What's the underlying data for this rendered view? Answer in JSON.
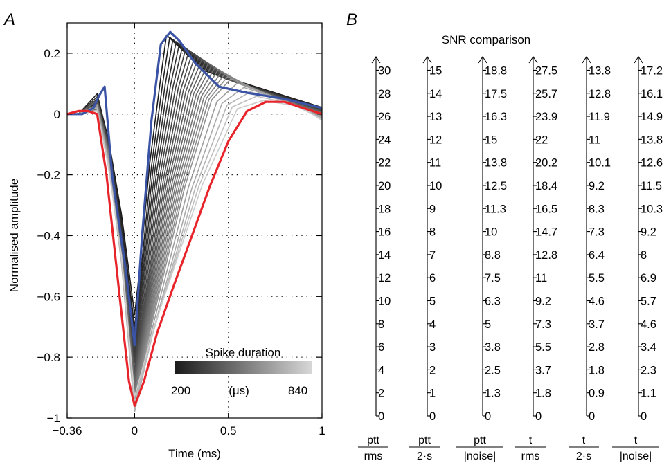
{
  "panel_labels": {
    "a": "A",
    "b": "B"
  },
  "chart_data": [
    {
      "type": "line",
      "panel": "A",
      "xlabel": "Time (ms)",
      "ylabel": "Normalised amplitude",
      "xlim": [
        -0.36,
        1
      ],
      "ylim": [
        -1,
        0.3
      ],
      "xticks": [
        -0.36,
        0,
        0.5,
        1
      ],
      "xtick_labels": [
        "−0.36",
        "0",
        "0.5",
        "1"
      ],
      "yticks": [
        0.2,
        0,
        -0.2,
        -0.4,
        -0.6,
        -0.8,
        -1
      ],
      "ytick_labels": [
        "0.2",
        "0",
        "−0.2",
        "−0.4",
        "−0.6",
        "−0.8",
        "−1"
      ],
      "grid": "dotted",
      "colorbar": {
        "title": "Spike duration",
        "unit": "(μs)",
        "min_label": "200",
        "max_label": "840",
        "colors": [
          "#1a1a1a",
          "#d8d8d8"
        ]
      },
      "series": [
        {
          "color": "#3a53a4",
          "highlight": true,
          "trough": -0.76,
          "dur": 200
        },
        {
          "color": "#e8242b",
          "highlight": true,
          "trough": -0.96,
          "dur": 840
        }
      ],
      "gray_traces": [
        {
          "trough": -0.66,
          "dur": 200
        },
        {
          "trough": -0.7,
          "dur": 220
        },
        {
          "trough": -0.72,
          "dur": 240
        },
        {
          "trough": -0.74,
          "dur": 260
        },
        {
          "trough": -0.76,
          "dur": 280
        },
        {
          "trough": -0.78,
          "dur": 300
        },
        {
          "trough": -0.8,
          "dur": 320
        },
        {
          "trough": -0.82,
          "dur": 340
        },
        {
          "trough": -0.84,
          "dur": 360
        },
        {
          "trough": -0.85,
          "dur": 380
        },
        {
          "trough": -0.86,
          "dur": 400
        },
        {
          "trough": -0.87,
          "dur": 420
        },
        {
          "trough": -0.88,
          "dur": 440
        },
        {
          "trough": -0.89,
          "dur": 460
        },
        {
          "trough": -0.9,
          "dur": 480
        },
        {
          "trough": -0.91,
          "dur": 500
        },
        {
          "trough": -0.92,
          "dur": 520
        },
        {
          "trough": -0.93,
          "dur": 540
        },
        {
          "trough": -0.94,
          "dur": 560
        },
        {
          "trough": -0.95,
          "dur": 580
        },
        {
          "trough": -0.96,
          "dur": 600
        },
        {
          "trough": -0.97,
          "dur": 640
        },
        {
          "trough": -0.98,
          "dur": 680
        },
        {
          "trough": -0.97,
          "dur": 720
        },
        {
          "trough": -0.95,
          "dur": 760
        },
        {
          "trough": -0.93,
          "dur": 800
        }
      ]
    },
    {
      "type": "table",
      "panel": "B",
      "title": "SNR comparison",
      "axes": [
        {
          "num": "ptt",
          "den": "rms",
          "ticks": [
            "30",
            "28",
            "26",
            "24",
            "22",
            "20",
            "18",
            "16",
            "14",
            "12",
            "10",
            "8",
            "6",
            "4",
            "2",
            "0"
          ]
        },
        {
          "num": "ptt",
          "den": "2·s",
          "ticks": [
            "15",
            "14",
            "13",
            "12",
            "11",
            "10",
            "9",
            "8",
            "7",
            "6",
            "5",
            "4",
            "3",
            "2",
            "1",
            "0"
          ]
        },
        {
          "num": "ptt",
          "den": "|noise|",
          "ticks": [
            "18.8",
            "17.5",
            "16.3",
            "15",
            "13.8",
            "12.5",
            "11.3",
            "10",
            "8.8",
            "7.5",
            "6.3",
            "5",
            "3.8",
            "2.5",
            "1.3",
            "0"
          ]
        },
        {
          "num": "t",
          "den": "rms",
          "ticks": [
            "27.5",
            "25.7",
            "23.9",
            "22",
            "20.2",
            "18.4",
            "16.5",
            "14.7",
            "12.8",
            "11",
            "9.2",
            "7.3",
            "5.5",
            "3.7",
            "1.8",
            "0"
          ]
        },
        {
          "num": "t",
          "den": "2·s",
          "ticks": [
            "13.8",
            "12.8",
            "11.9",
            "11",
            "10.1",
            "9.2",
            "8.3",
            "7.3",
            "6.4",
            "5.5",
            "4.6",
            "3.7",
            "2.8",
            "1.8",
            "0.9",
            "0"
          ]
        },
        {
          "num": "t",
          "den": "|noise|",
          "ticks": [
            "17.2",
            "16.1",
            "14.9",
            "13.8",
            "12.6",
            "11.5",
            "10.3",
            "9.2",
            "8",
            "6.9",
            "5.7",
            "4.6",
            "3.4",
            "2.3",
            "1.1",
            "0"
          ]
        }
      ]
    }
  ]
}
